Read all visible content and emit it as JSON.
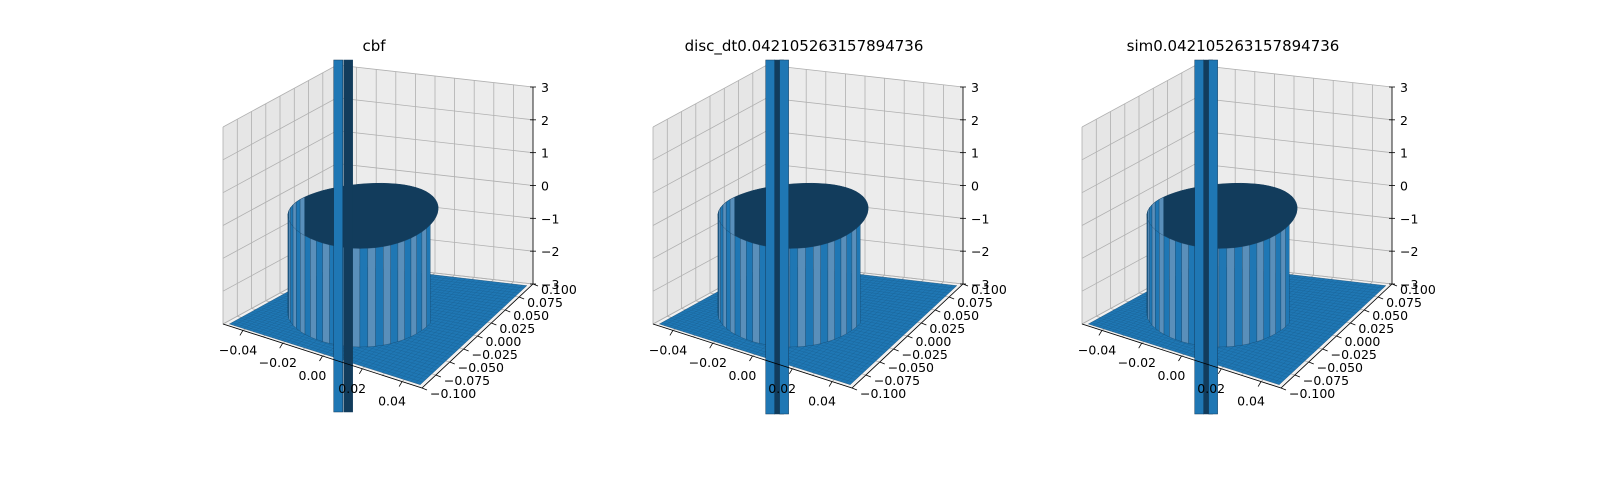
{
  "figure": {
    "colors": {
      "surface": "#1f77b4",
      "surface_dark": "#123c5c",
      "surface_light": "#5a8fba",
      "pane_left": "#e6e6e6",
      "pane_back": "#ececec",
      "pane_floor": "#f2f2f2",
      "grid": "#b0b0b0"
    }
  },
  "chart_data": [
    {
      "type": "surface3d",
      "title": "cbf",
      "x_ticks": [
        "−0.04",
        "−0.02",
        "0.00",
        "0.02",
        "0.04"
      ],
      "y_ticks": [
        "−0.100",
        "−0.075",
        "−0.050",
        "−0.025",
        "0.000",
        "0.025",
        "0.050",
        "0.075",
        "0.100"
      ],
      "z_ticks": [
        "−3",
        "−2",
        "−1",
        "0",
        "1",
        "2",
        "3"
      ],
      "xlim": [
        -0.05,
        0.05
      ],
      "ylim": [
        -0.1,
        0.1
      ],
      "zlim": [
        -3,
        3
      ],
      "grid": true
    },
    {
      "type": "surface3d",
      "title": "disc_dt0.042105263157894736",
      "x_ticks": [
        "−0.04",
        "−0.02",
        "0.00",
        "0.02",
        "0.04"
      ],
      "y_ticks": [
        "−0.100",
        "−0.075",
        "−0.050",
        "−0.025",
        "0.000",
        "0.025",
        "0.050",
        "0.075",
        "0.100"
      ],
      "z_ticks": [
        "−3",
        "−2",
        "−1",
        "0",
        "1",
        "2",
        "3"
      ],
      "xlim": [
        -0.05,
        0.05
      ],
      "ylim": [
        -0.1,
        0.1
      ],
      "zlim": [
        -3,
        3
      ],
      "grid": true
    },
    {
      "type": "surface3d",
      "title": "sim0.042105263157894736",
      "x_ticks": [
        "−0.04",
        "−0.02",
        "0.00",
        "0.02",
        "0.04"
      ],
      "y_ticks": [
        "−0.100",
        "−0.075",
        "−0.050",
        "−0.025",
        "0.000",
        "0.025",
        "0.050",
        "0.075",
        "0.100"
      ],
      "z_ticks": [
        "−3",
        "−2",
        "−1",
        "0",
        "1",
        "2",
        "3"
      ],
      "xlim": [
        -0.05,
        0.05
      ],
      "ylim": [
        -0.1,
        0.1
      ],
      "zlim": [
        -3,
        3
      ],
      "grid": true
    }
  ]
}
